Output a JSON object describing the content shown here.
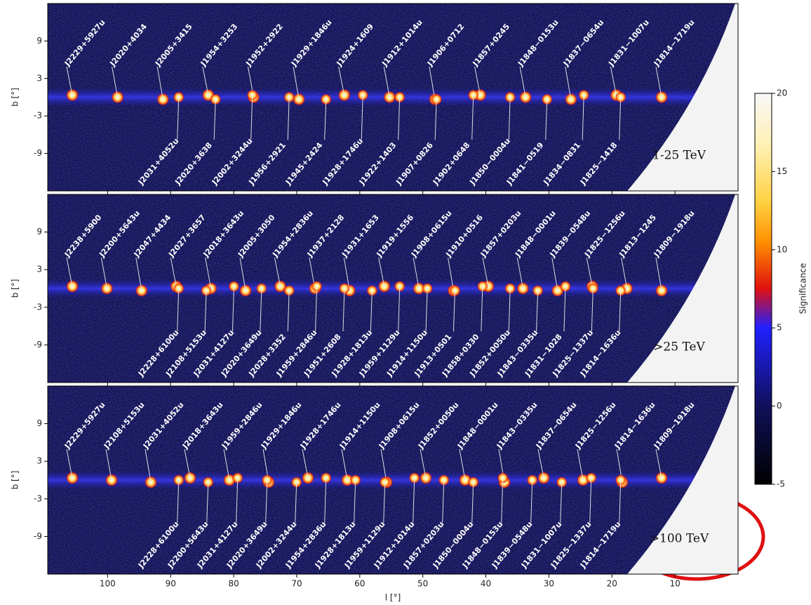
{
  "chart_data": [
    {
      "type": "heatmap",
      "label": "1-25 TeV",
      "ylabel": "b [°]",
      "ylim": [
        -15,
        15
      ],
      "yticks": [
        -9,
        -3,
        3,
        9
      ],
      "sources_above": [
        "J2229+5927u",
        "J2020+4034",
        "J2005+3415",
        "J1954+3253",
        "J1952+2922",
        "J1929+1846u",
        "J1924+1609",
        "J1912+1014u",
        "J1906+0712",
        "J1857+0245",
        "J1848−0153u",
        "J1837−0654u",
        "J1831−1007u",
        "J1814−1719u"
      ],
      "sources_below": [
        "J2031+4052u",
        "J2020+3638",
        "J2002+3244u",
        "J1956+2921",
        "J1945+2424",
        "J1928+1746u",
        "J1922+1403",
        "J1907+0826",
        "J1902+0648",
        "J1850−0004u",
        "J1841−0519",
        "J1834−0831",
        "J1825−1418"
      ]
    },
    {
      "type": "heatmap",
      "label": ">25 TeV",
      "ylabel": "b [°]",
      "ylim": [
        -15,
        15
      ],
      "yticks": [
        -9,
        -3,
        3,
        9
      ],
      "sources_above": [
        "J2238+5900",
        "J2200+5643u",
        "J2047+4434",
        "J2027+3657",
        "J2018+3643u",
        "J2005+3050",
        "J1954+2836u",
        "J1937+2128",
        "J1931+1653",
        "J1919+1556",
        "J1908+0615u",
        "J1910+0516",
        "J1857+0203u",
        "J1848−0001u",
        "J1839−0548u",
        "J1825−1256u",
        "J1813−1245",
        "J1809−1918u"
      ],
      "sources_below": [
        "J2228+6100u",
        "J2108+5153u",
        "J2031+4127u",
        "J2020+3649u",
        "J2028+3352",
        "J1959+2846u",
        "J1951+2608",
        "J1928+1813u",
        "J1959+1129u",
        "J1914+1150u",
        "J1913+0501",
        "J1858+0330",
        "J1852+0050u",
        "J1843−0335u",
        "J1831−1028",
        "J1825−1337u",
        "J1814−1636u"
      ]
    },
    {
      "type": "heatmap",
      "label": ">100 TeV",
      "ylabel": "b [°]",
      "ylim": [
        -15,
        15
      ],
      "yticks": [
        -9,
        -3,
        3,
        9
      ],
      "xlabel": "l [°]",
      "xlim": [
        109.5,
        0
      ],
      "xticks": [
        100,
        90,
        80,
        70,
        60,
        50,
        40,
        30,
        20,
        10
      ],
      "sources_above": [
        "J2229+5927u",
        "J2108+5153u",
        "J2031+4052u",
        "J2018+3643u",
        "J1959+2846u",
        "J1929+1846u",
        "J1928+1746u",
        "J1914+1150u",
        "J1908+0615u",
        "J1852+0050u",
        "J1848−0001u",
        "J1843−0335u",
        "J1837−0654u",
        "J1825−1256u",
        "J1814−1636u",
        "J1809−1918u"
      ],
      "sources_below": [
        "J2228+6100u",
        "J2200+5643u",
        "J2031+4127u",
        "J2020+3649u",
        "J2002+3244u",
        "J1954+2836u",
        "J1928+1813u",
        "J1959+1129u",
        "J1912+1014u",
        "J1857+0203u",
        "J1850−0004u",
        "J1848−0153u",
        "J1839−0548u",
        "J1831−1007u",
        "J1825−1337u",
        "J1814−1719u"
      ]
    }
  ],
  "colorbar": {
    "label": "Significance",
    "lim": [
      -5,
      20
    ],
    "ticks": [
      -5,
      0,
      5,
      10,
      15,
      20
    ]
  }
}
